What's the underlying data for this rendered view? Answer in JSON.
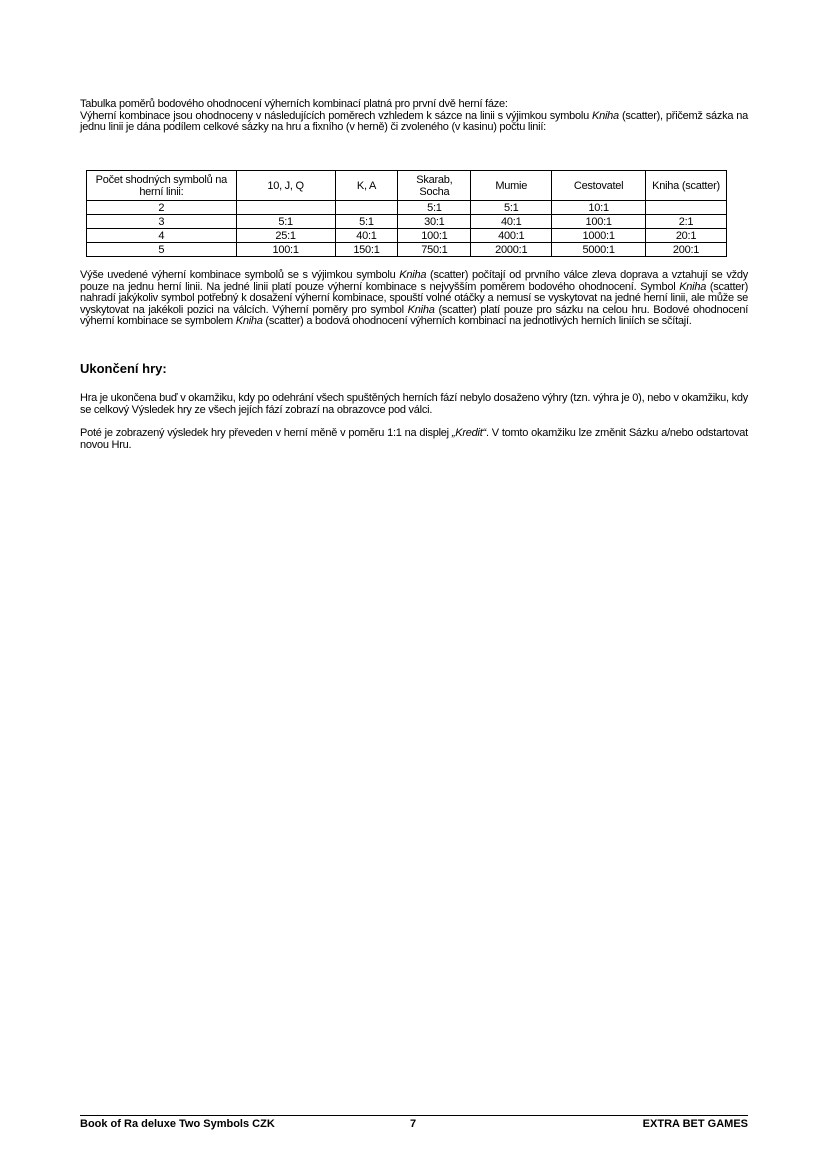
{
  "intro": {
    "line1": "Tabulka poměrů bodového ohodnocení výherních kombinací platná pro první dvě herní fáze:",
    "p2a": "Výherní kombinace jsou ohodnoceny v následujících poměrech vzhledem k sázce na linii s výjimkou symbolu ",
    "p2b": "Kniha",
    "p2c": " (scatter), přičemž sázka na jednu linii je dána podílem celkové sázky na hru a fixního (v herně) či zvoleného (v kasinu) počtu linií:"
  },
  "table": {
    "headers": [
      "Počet shodných symbolů na herní linii:",
      "10, J, Q",
      "K, A",
      "Skarab, Socha",
      "Mumie",
      "Cestovatel",
      "Kniha (scatter)"
    ],
    "rows": [
      [
        "2",
        "",
        "",
        "5:1",
        "5:1",
        "10:1",
        ""
      ],
      [
        "3",
        "5:1",
        "5:1",
        "30:1",
        "40:1",
        "100:1",
        "2:1"
      ],
      [
        "4",
        "25:1",
        "40:1",
        "100:1",
        "400:1",
        "1000:1",
        "20:1"
      ],
      [
        "5",
        "100:1",
        "150:1",
        "750:1",
        "2000:1",
        "5000:1",
        "200:1"
      ]
    ]
  },
  "para3": {
    "s1": "Výše uvedené výherní kombinace symbolů se s výjimkou symbolu ",
    "i1": "Kniha",
    "s2": " (scatter) počítají od prvního válce zleva doprava a vztahují se vždy pouze na jednu herní linii. Na jedné linii platí pouze výherní kombinace s nejvyšším poměrem bodového ohodnocení. Symbol ",
    "i2": "Kniha",
    "s3": " (scatter) nahradí jakýkoliv symbol potřebný k dosažení výherní kombinace, spouští volné otáčky a nemusí se vyskytovat na jedné herní linii, ale může se vyskytovat na jakékoli pozici na válcích. Výherní poměry pro symbol ",
    "i3": "Kniha",
    "s4": " (scatter) platí pouze pro sázku na celou hru. Bodové ohodnocení výherní kombinace se symbolem ",
    "i4": "Kniha",
    "s5": " (scatter) a bodová ohodnocení výherních kombinací na jednotlivých herních liniích se sčítají."
  },
  "heading": "Ukončení hry:",
  "para4": "Hra je ukončena buď v okamžiku, kdy po odehrání všech spuštěných herních fází nebylo dosaženo výhry (tzn. výhra je 0), nebo v okamžiku, kdy se celkový Výsledek hry ze všech jejích fází zobrazí na obrazovce pod válci.",
  "para5": {
    "s1": "Poté je zobrazený výsledek hry převeden v herní měně v poměru 1:1 na displej ",
    "i1": "„Kredit“",
    "s2": ". V tomto okamžiku lze změnit Sázku a/nebo odstartovat novou Hru."
  },
  "footer": {
    "left": "Book of Ra deluxe Two Symbols CZK",
    "page": "7",
    "right": "EXTRA BET GAMES"
  }
}
